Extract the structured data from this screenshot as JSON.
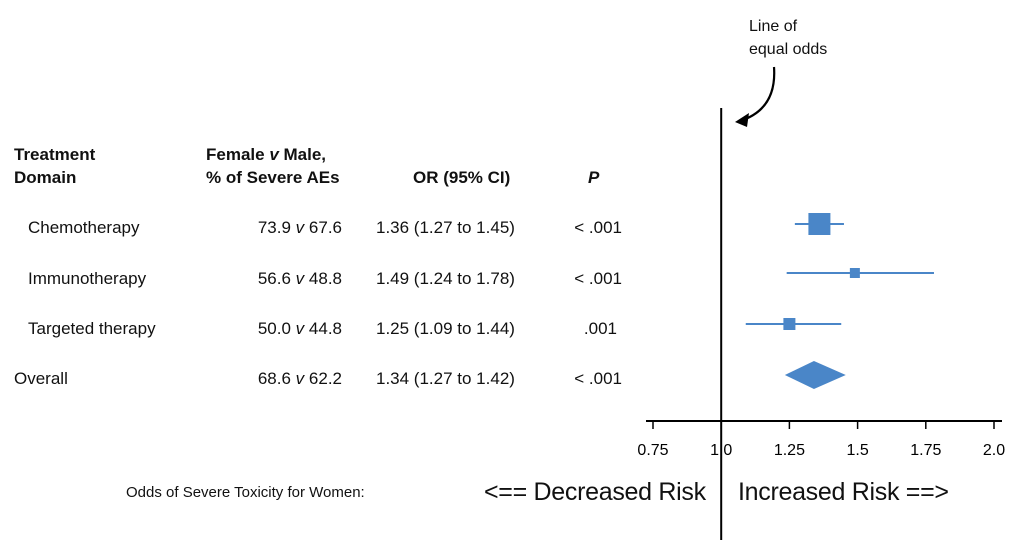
{
  "annotation": {
    "line1": "Line of",
    "line2": "equal odds"
  },
  "table": {
    "headers": {
      "domain_line1": "Treatment",
      "domain_line2": "Domain",
      "pct_line1_pre": "Female ",
      "pct_line1_v": "v",
      "pct_line1_post": " Male,",
      "pct_line2": "% of Severe AEs",
      "or": "OR (95% CI)",
      "p": "P"
    },
    "rows": [
      {
        "domain": "Chemotherapy",
        "female": "73.9",
        "v": "v",
        "male": "67.6",
        "or": "1.36 (1.27 to 1.45)",
        "p": "< .001"
      },
      {
        "domain": "Immunotherapy",
        "female": "56.6",
        "v": "v",
        "male": "48.8",
        "or": "1.49 (1.24 to 1.78)",
        "p": "< .001"
      },
      {
        "domain": "Targeted therapy",
        "female": "50.0",
        "v": "v",
        "male": "44.8",
        "or": "1.25 (1.09 to 1.44)",
        "p": ".001"
      },
      {
        "domain": "Overall",
        "female": "68.6",
        "v": "v",
        "male": "62.2",
        "or": "1.34 (1.27 to 1.42)",
        "p": "< .001"
      }
    ]
  },
  "footer": {
    "label": "Odds of Severe Toxicity for Women:",
    "decreased": "<== Decreased Risk",
    "increased": "Increased Risk ==>"
  },
  "colors": {
    "marker": "#4a86c8",
    "axis": "#000000"
  },
  "chart_data": {
    "type": "forest",
    "x_min": 0.75,
    "x_max": 2.0,
    "reference_line": 1.0,
    "ticks": [
      0.75,
      1.0,
      1.25,
      1.5,
      1.75,
      2.0
    ],
    "tick_labels": [
      "0.75",
      "1.0",
      "1.25",
      "1.5",
      "1.75",
      "2.0"
    ],
    "points": [
      {
        "label": "Chemotherapy",
        "or": 1.36,
        "ci_low": 1.27,
        "ci_high": 1.45,
        "weight": "large",
        "shape": "square"
      },
      {
        "label": "Immunotherapy",
        "or": 1.49,
        "ci_low": 1.24,
        "ci_high": 1.78,
        "weight": "small",
        "shape": "square"
      },
      {
        "label": "Targeted therapy",
        "or": 1.25,
        "ci_low": 1.09,
        "ci_high": 1.44,
        "weight": "medium",
        "shape": "square"
      },
      {
        "label": "Overall",
        "or": 1.34,
        "ci_low": 1.27,
        "ci_high": 1.42,
        "weight": "summary",
        "shape": "diamond"
      }
    ]
  }
}
